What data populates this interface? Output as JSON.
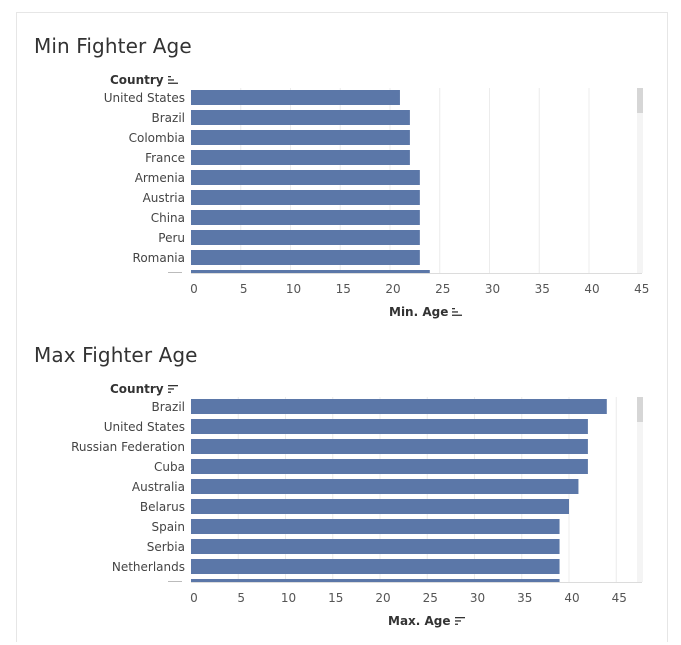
{
  "chart_data": [
    {
      "type": "bar",
      "orientation": "horizontal",
      "title": "Min Fighter Age",
      "ylabel": "Country",
      "xlabel": "Min. Age",
      "categories": [
        "United States",
        "Brazil",
        "Colombia",
        "France",
        "Armenia",
        "Austria",
        "China",
        "Peru",
        "Romania"
      ],
      "values": [
        21,
        22,
        22,
        22,
        23,
        23,
        23,
        23,
        23
      ],
      "partial_next_value": 24,
      "xlim": [
        0,
        45
      ],
      "xticks": [
        0,
        5,
        10,
        15,
        20,
        25,
        30,
        35,
        40,
        45
      ],
      "grid": "vertical",
      "sort": "ascending",
      "bar_color": "#5b77a8"
    },
    {
      "type": "bar",
      "orientation": "horizontal",
      "title": "Max Fighter Age",
      "ylabel": "Country",
      "xlabel": "Max. Age",
      "categories": [
        "Brazil",
        "United States",
        "Russian Federation",
        "Cuba",
        "Australia",
        "Belarus",
        "Spain",
        "Serbia",
        "Netherlands"
      ],
      "values": [
        44,
        42,
        42,
        42,
        41,
        40,
        39,
        39,
        39
      ],
      "partial_next_value": 39,
      "xlim": [
        0,
        47
      ],
      "xticks": [
        0,
        5,
        10,
        15,
        20,
        25,
        30,
        35,
        40,
        45
      ],
      "grid": "vertical",
      "sort": "descending",
      "bar_color": "#5b77a8"
    }
  ]
}
